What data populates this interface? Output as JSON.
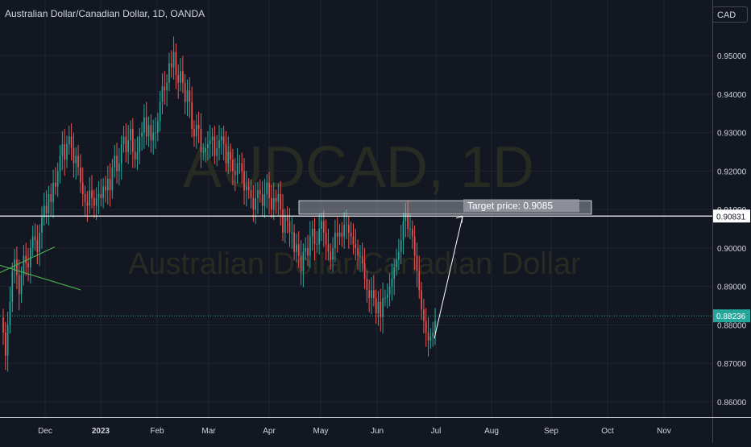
{
  "header": {
    "title": "Australian Dollar/Canadian Dollar, 1D, OANDA",
    "currency": "CAD"
  },
  "watermark": {
    "symbol": "AUDCAD, 1D",
    "name": "Australian Dollar/Canadian Dollar"
  },
  "colors": {
    "background": "#131722",
    "grid": "#1f2430",
    "up": "#26a69a",
    "down": "#ef5350",
    "text": "#d1d4dc",
    "current_line": "#26a69a",
    "trendline": "#4caf50"
  },
  "chart_data": {
    "type": "candlestick",
    "title": "Australian Dollar/Canadian Dollar, 1D, OANDA",
    "x_tick_labels": [
      "Dec",
      "2023",
      "Feb",
      "Mar",
      "Apr",
      "May",
      "Jun",
      "Jul",
      "Aug",
      "Sep",
      "Oct",
      "Nov"
    ],
    "y_tick_labels": [
      "0.95000",
      "0.94000",
      "0.93000",
      "0.92000",
      "0.91000",
      "0.90000",
      "0.89000",
      "0.88000",
      "0.87000",
      "0.86000"
    ],
    "y_ticks": [
      0.95,
      0.94,
      0.93,
      0.92,
      0.91,
      0.9,
      0.89,
      0.88,
      0.87,
      0.86
    ],
    "ylim": [
      0.856,
      0.9645
    ],
    "grid": true,
    "horizontal_level": {
      "value": 0.90831,
      "label": "0.90831"
    },
    "current_price": {
      "value": 0.88236,
      "label": "0.88236"
    },
    "annotations": [
      {
        "type": "label",
        "text": "Target price: 0.9085",
        "value": 0.9085
      }
    ],
    "series": [
      {
        "close": [
          0.878,
          0.872,
          0.88,
          0.886,
          0.894,
          0.897,
          0.893,
          0.888,
          0.893,
          0.898,
          0.896,
          0.895,
          0.9,
          0.903,
          0.902,
          0.899,
          0.904,
          0.908,
          0.911,
          0.909,
          0.914,
          0.912,
          0.917,
          0.916,
          0.92,
          0.924,
          0.927,
          0.923,
          0.927,
          0.929,
          0.926,
          0.922,
          0.924,
          0.921,
          0.917,
          0.914,
          0.912,
          0.911,
          0.915,
          0.913,
          0.911,
          0.913,
          0.914,
          0.913,
          0.916,
          0.915,
          0.918,
          0.915,
          0.921,
          0.924,
          0.92,
          0.922,
          0.927,
          0.929,
          0.925,
          0.928,
          0.931,
          0.925,
          0.923,
          0.925,
          0.929,
          0.93,
          0.934,
          0.929,
          0.932,
          0.928,
          0.93,
          0.93,
          0.933,
          0.938,
          0.942,
          0.941,
          0.943,
          0.948,
          0.947,
          0.951,
          0.945,
          0.943,
          0.946,
          0.943,
          0.938,
          0.941,
          0.938,
          0.931,
          0.929,
          0.932,
          0.931,
          0.925,
          0.925,
          0.926,
          0.927,
          0.928,
          0.929,
          0.924,
          0.926,
          0.928,
          0.929,
          0.927,
          0.922,
          0.925,
          0.923,
          0.92,
          0.919,
          0.922,
          0.922,
          0.92,
          0.915,
          0.916,
          0.915,
          0.913,
          0.91,
          0.913,
          0.915,
          0.914,
          0.911,
          0.914,
          0.917,
          0.913,
          0.91,
          0.913,
          0.912,
          0.914,
          0.91,
          0.904,
          0.908,
          0.907,
          0.904,
          0.904,
          0.899,
          0.901,
          0.898,
          0.894,
          0.899,
          0.9,
          0.898,
          0.903,
          0.905,
          0.901,
          0.901,
          0.905,
          0.907,
          0.904,
          0.901,
          0.899,
          0.897,
          0.9,
          0.904,
          0.903,
          0.904,
          0.903,
          0.906,
          0.906,
          0.904,
          0.903,
          0.901,
          0.9,
          0.898,
          0.898,
          0.896,
          0.892,
          0.889,
          0.887,
          0.889,
          0.887,
          0.883,
          0.886,
          0.882,
          0.887,
          0.887,
          0.888,
          0.89,
          0.892,
          0.895,
          0.897,
          0.899,
          0.902,
          0.907,
          0.909,
          0.905,
          0.905,
          0.903,
          0.898,
          0.894,
          0.889,
          0.884,
          0.881,
          0.878,
          0.876,
          0.877,
          0.878,
          0.881
        ]
      }
    ]
  }
}
